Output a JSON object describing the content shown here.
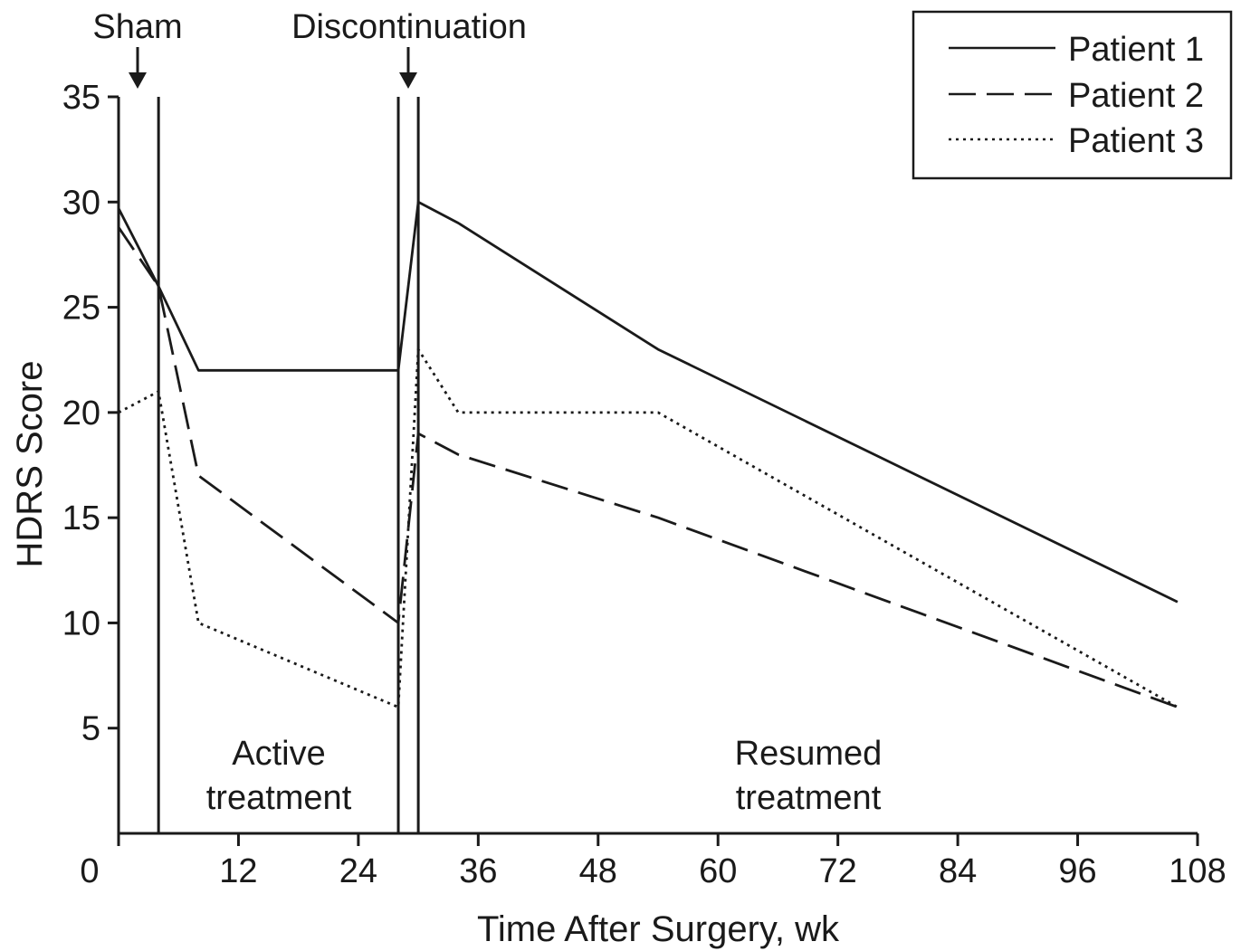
{
  "chart_data": {
    "type": "line",
    "xlabel": "Time After Surgery, wk",
    "ylabel": "HDRS Score",
    "xlim": [
      0,
      108
    ],
    "ylim": [
      0,
      35
    ],
    "xticks": [
      0,
      12,
      24,
      36,
      48,
      60,
      72,
      84,
      96,
      108
    ],
    "yticks": [
      5,
      10,
      15,
      20,
      25,
      30,
      35
    ],
    "legend_position": "top-right",
    "phase_lines_x": [
      0,
      4,
      28,
      30
    ],
    "annotations": {
      "sham": "Sham",
      "discontinuation": "Discontinuation",
      "active_line1": "Active",
      "active_line2": "treatment",
      "resumed_line1": "Resumed",
      "resumed_line2": "treatment"
    },
    "series": [
      {
        "name": "Patient 1",
        "style": "solid",
        "x": [
          0,
          4,
          8,
          28,
          30,
          34,
          54,
          106
        ],
        "y": [
          29.7,
          26,
          22,
          22,
          30,
          29,
          23,
          11
        ]
      },
      {
        "name": "Patient 2",
        "style": "dashed",
        "x": [
          0,
          4,
          8,
          28,
          30,
          34,
          54,
          106
        ],
        "y": [
          28.8,
          26,
          17,
          10,
          19,
          18,
          15,
          6
        ]
      },
      {
        "name": "Patient 3",
        "style": "dotted",
        "x": [
          0,
          4,
          8,
          28,
          30,
          34,
          54,
          106
        ],
        "y": [
          20,
          21,
          10,
          6,
          23,
          20,
          20,
          6
        ]
      }
    ]
  }
}
